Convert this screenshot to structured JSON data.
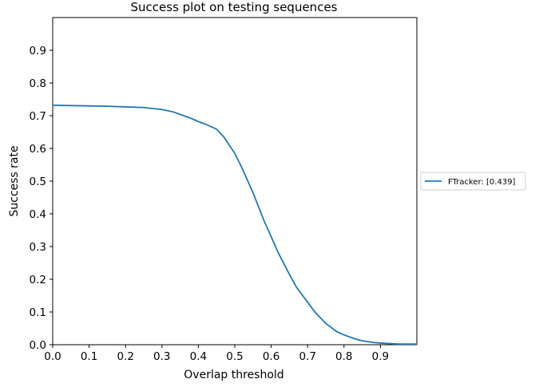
{
  "chart_data": {
    "type": "line",
    "title": "Success plot on testing sequences",
    "xlabel": "Overlap threshold",
    "ylabel": "Success rate",
    "xlim": [
      0,
      1
    ],
    "ylim": [
      0,
      1
    ],
    "xticks": [
      "0.0",
      "0.1",
      "0.2",
      "0.3",
      "0.4",
      "0.5",
      "0.6",
      "0.7",
      "0.8",
      "0.9"
    ],
    "yticks": [
      "0.0",
      "0.1",
      "0.2",
      "0.3",
      "0.4",
      "0.5",
      "0.6",
      "0.7",
      "0.8",
      "0.9"
    ],
    "grid": false,
    "legend_position": "outside-right",
    "series": [
      {
        "name": "FTracker: [0.439]",
        "color": "#1f77b4",
        "x": [
          0.0,
          0.05,
          0.1,
          0.15,
          0.2,
          0.25,
          0.3,
          0.33,
          0.35,
          0.38,
          0.4,
          0.42,
          0.45,
          0.47,
          0.5,
          0.52,
          0.55,
          0.58,
          0.6,
          0.62,
          0.65,
          0.67,
          0.7,
          0.72,
          0.75,
          0.78,
          0.8,
          0.83,
          0.85,
          0.88,
          0.9,
          0.95,
          1.0
        ],
        "y": [
          0.732,
          0.731,
          0.73,
          0.729,
          0.727,
          0.725,
          0.719,
          0.712,
          0.704,
          0.692,
          0.682,
          0.674,
          0.659,
          0.635,
          0.585,
          0.54,
          0.465,
          0.38,
          0.33,
          0.28,
          0.215,
          0.175,
          0.13,
          0.1,
          0.065,
          0.04,
          0.03,
          0.018,
          0.012,
          0.007,
          0.005,
          0.002,
          0.002
        ]
      }
    ]
  }
}
